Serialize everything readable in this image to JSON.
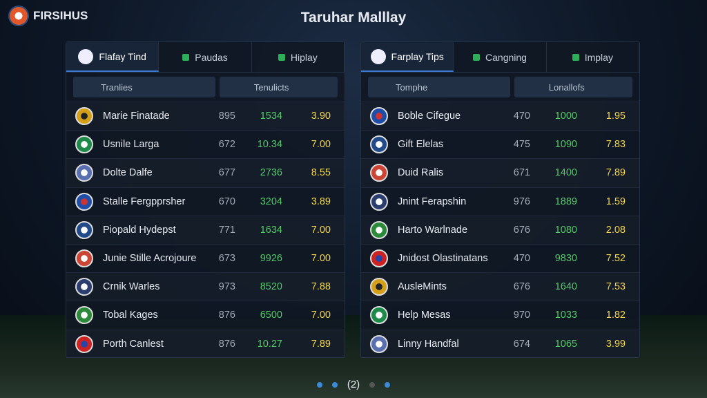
{
  "header": {
    "logo": "FIRSIHUS",
    "title": "Taruhar Malllay"
  },
  "panels": [
    {
      "tabs": [
        "Flafay Tind",
        "Paudas",
        "Hiplay"
      ],
      "search": "Tranlies",
      "filter": "Tenulicts",
      "rows": [
        [
          "Marie Finatade",
          "895",
          "1534",
          "3.90"
        ],
        [
          "Usnile Larga",
          "672",
          "10.34",
          "7.00"
        ],
        [
          "Dolte Dalfe",
          "677",
          "2736",
          "8.55"
        ],
        [
          "Stalle Fergpprsher",
          "670",
          "3204",
          "3.89"
        ],
        [
          "Piopald Hydepst",
          "771",
          "1634",
          "7.00"
        ],
        [
          "Junie Stille Acrojoure",
          "673",
          "9926",
          "7.00"
        ],
        [
          "Crnik Warles",
          "973",
          "8520",
          "7.88"
        ],
        [
          "Tobal Kages",
          "876",
          "6500",
          "7.00"
        ],
        [
          "Porth Canlest",
          "876",
          "10.27",
          "7.89"
        ]
      ]
    },
    {
      "tabs": [
        "Farplay Tips",
        "Cangning",
        "Implay"
      ],
      "search": "Tomphe",
      "filter": "Lonallofs",
      "rows": [
        [
          "Boble Cifegue",
          "470",
          "1000",
          "1.95"
        ],
        [
          "Gift Elelas",
          "475",
          "1090",
          "7.83"
        ],
        [
          "Duid Ralis",
          "671",
          "1400",
          "7.89"
        ],
        [
          "Jnint Ferapshin",
          "976",
          "1889",
          "1.59"
        ],
        [
          "Harto Warlnade",
          "676",
          "1080",
          "2.08"
        ],
        [
          "Jnidost Olastinatans",
          "470",
          "9830",
          "7.52"
        ],
        [
          "AusleMints",
          "676",
          "1640",
          "7.53"
        ],
        [
          "Help Mesas",
          "970",
          "1033",
          "1.82"
        ],
        [
          "Linny Handfal",
          "674",
          "1065",
          "3.99"
        ]
      ]
    }
  ],
  "pager": {
    "current": "(2)"
  }
}
